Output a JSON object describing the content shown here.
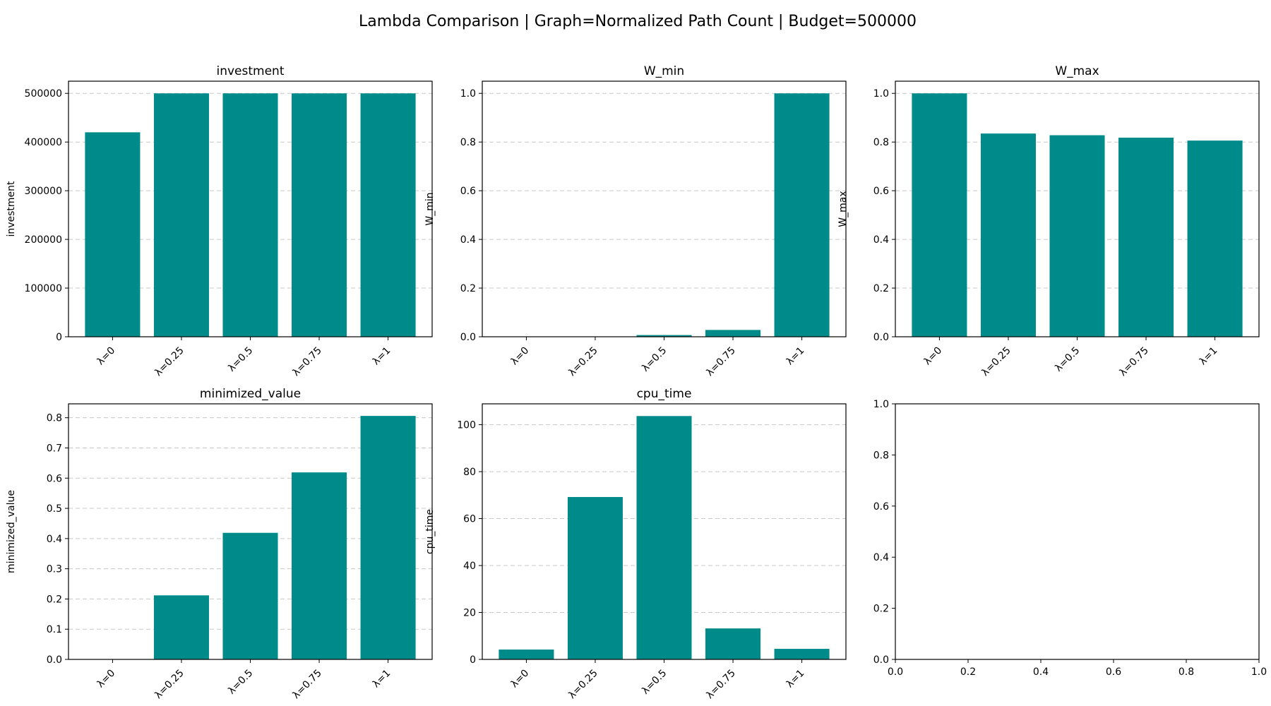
{
  "figure": {
    "title": "Lambda Comparison | Graph=Normalized Path Count | Budget=500000",
    "bar_color": "#008b8b"
  },
  "chart_data": [
    {
      "type": "bar",
      "title": "investment",
      "xlabel": "",
      "ylabel": "investment",
      "categories": [
        "λ=0",
        "λ=0.25",
        "λ=0.5",
        "λ=0.75",
        "λ=1"
      ],
      "values": [
        420000,
        500000,
        500000,
        500000,
        500000
      ],
      "ylim": [
        0,
        525000
      ],
      "yticks": [
        0,
        100000,
        200000,
        300000,
        400000,
        500000
      ],
      "ytick_labels": [
        "0",
        "100000",
        "200000",
        "300000",
        "400000",
        "500000"
      ],
      "grid": true
    },
    {
      "type": "bar",
      "title": "W_min",
      "xlabel": "",
      "ylabel": "W_min",
      "categories": [
        "λ=0",
        "λ=0.25",
        "λ=0.5",
        "λ=0.75",
        "λ=1"
      ],
      "values": [
        0.0,
        0.0,
        0.007,
        0.028,
        1.0
      ],
      "ylim": [
        0,
        1.05
      ],
      "yticks": [
        0,
        0.2,
        0.4,
        0.6,
        0.8,
        1.0
      ],
      "ytick_labels": [
        "0.0",
        "0.2",
        "0.4",
        "0.6",
        "0.8",
        "1.0"
      ],
      "grid": true
    },
    {
      "type": "bar",
      "title": "W_max",
      "xlabel": "",
      "ylabel": "W_max",
      "categories": [
        "λ=0",
        "λ=0.25",
        "λ=0.5",
        "λ=0.75",
        "λ=1"
      ],
      "values": [
        1.0,
        0.835,
        0.828,
        0.818,
        0.806
      ],
      "ylim": [
        0,
        1.05
      ],
      "yticks": [
        0,
        0.2,
        0.4,
        0.6,
        0.8,
        1.0
      ],
      "ytick_labels": [
        "0.0",
        "0.2",
        "0.4",
        "0.6",
        "0.8",
        "1.0"
      ],
      "grid": true
    },
    {
      "type": "bar",
      "title": "minimized_value",
      "xlabel": "",
      "ylabel": "minimized_value",
      "categories": [
        "λ=0",
        "λ=0.25",
        "λ=0.5",
        "λ=0.75",
        "λ=1"
      ],
      "values": [
        0.0,
        0.212,
        0.419,
        0.619,
        0.806
      ],
      "ylim": [
        0,
        0.846
      ],
      "yticks": [
        0,
        0.1,
        0.2,
        0.3,
        0.4,
        0.5,
        0.6,
        0.7,
        0.8
      ],
      "ytick_labels": [
        "0.0",
        "0.1",
        "0.2",
        "0.3",
        "0.4",
        "0.5",
        "0.6",
        "0.7",
        "0.8"
      ],
      "grid": true
    },
    {
      "type": "bar",
      "title": "cpu_time",
      "xlabel": "",
      "ylabel": "cpu_time",
      "categories": [
        "λ=0",
        "λ=0.25",
        "λ=0.5",
        "λ=0.75",
        "λ=1"
      ],
      "values": [
        4.2,
        69.2,
        103.7,
        13.2,
        4.5
      ],
      "ylim": [
        0,
        108.9
      ],
      "yticks": [
        0,
        20,
        40,
        60,
        80,
        100
      ],
      "ytick_labels": [
        "0",
        "20",
        "40",
        "60",
        "80",
        "100"
      ],
      "grid": true
    },
    {
      "type": "empty",
      "title": "",
      "xlim": [
        0,
        1
      ],
      "ylim": [
        0,
        1
      ],
      "xticks": [
        0,
        0.2,
        0.4,
        0.6,
        0.8,
        1.0
      ],
      "xtick_labels": [
        "0.0",
        "0.2",
        "0.4",
        "0.6",
        "0.8",
        "1.0"
      ],
      "yticks": [
        0,
        0.2,
        0.4,
        0.6,
        0.8,
        1.0
      ],
      "ytick_labels": [
        "0.0",
        "0.2",
        "0.4",
        "0.6",
        "0.8",
        "1.0"
      ],
      "grid": false
    }
  ]
}
